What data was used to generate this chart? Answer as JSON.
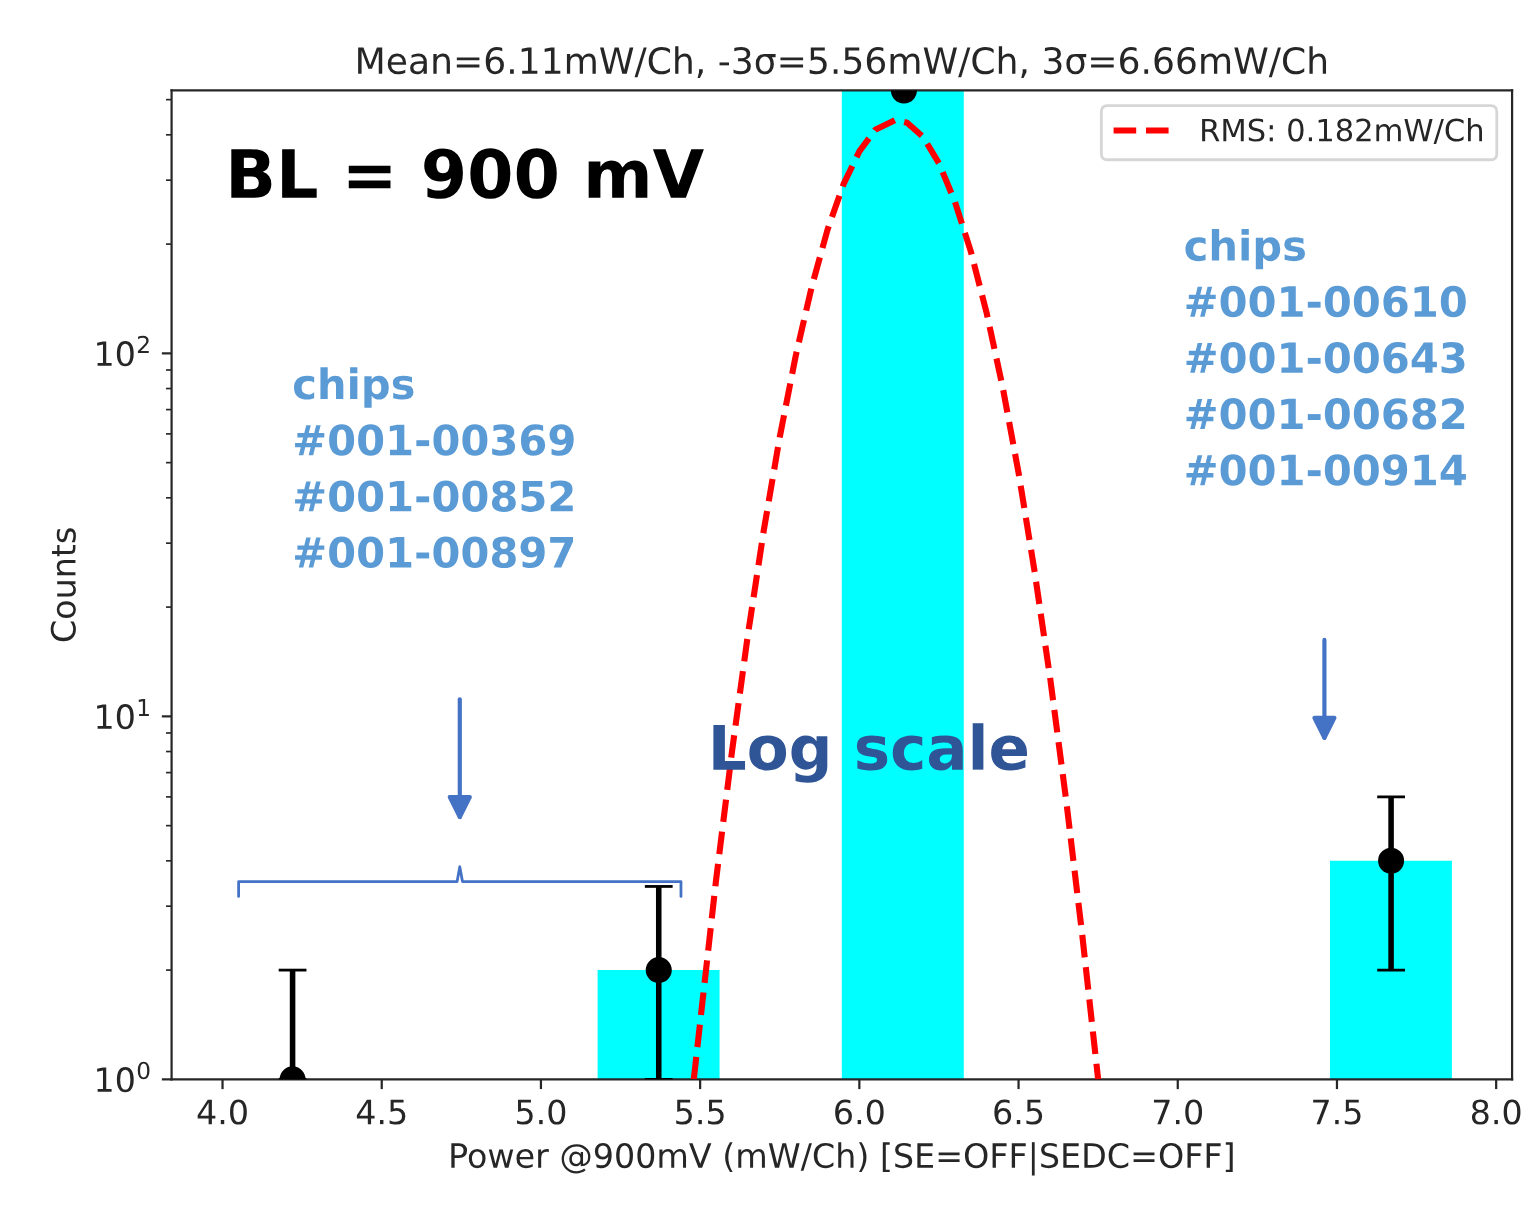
{
  "chart_data": {
    "type": "histogram",
    "title": "Mean=6.11mW/Ch, -3σ=5.56mW/Ch, 3σ=6.66mW/Ch",
    "xlabel": "Power @900mV (mW/Ch) [SE=OFF|SEDC=OFF]",
    "ylabel": "Counts",
    "bins": [
      4.029,
      4.412,
      4.795,
      5.178,
      5.561,
      5.945,
      6.328,
      6.711,
      7.094,
      7.478,
      7.861
    ],
    "values": [
      1,
      null,
      null,
      2,
      null,
      530,
      null,
      null,
      null,
      4
    ],
    "color": "#00ffff",
    "series": [
      {
        "type": "scatter",
        "color": "#000000",
        "marker": "circle",
        "x": [
          4.22,
          5.37,
          6.14,
          7.67
        ],
        "values": [
          1,
          2,
          530,
          4
        ],
        "errors": [
          [
            1,
            2
          ],
          [
            1,
            3.4
          ],
          null,
          [
            2,
            6
          ]
        ]
      },
      {
        "type": "line",
        "name": "RMS: 0.182mW/Ch",
        "color": "#ff0000",
        "line_style": "dashed",
        "x": [
          5.48,
          5.55,
          5.6,
          5.65,
          5.7,
          5.75,
          5.8,
          5.85,
          5.9,
          5.95,
          6.0,
          6.05,
          6.115,
          6.15,
          6.2,
          6.25,
          6.3,
          6.35,
          6.4,
          6.45,
          6.5,
          6.55,
          6.6,
          6.65,
          6.7,
          6.75
        ],
        "values": [
          1.0,
          3.54,
          8.0,
          16.8,
          32.6,
          58.8,
          98.3,
          152,
          219,
          292,
          360,
          413,
          440,
          432,
          395,
          334,
          262,
          191,
          129,
          80.8,
          46.9,
          25.2,
          12.6,
          5.83,
          2.5,
          1.0
        ]
      }
    ],
    "log": "y",
    "xlim": [
      3.84,
      8.05
    ],
    "xticks": [
      {
        "value": 4,
        "label": "4.0"
      },
      4.5,
      {
        "value": 5,
        "label": "5.0"
      },
      5.5,
      {
        "value": 6,
        "label": "6.0"
      },
      6.5,
      {
        "value": 7,
        "label": "7.0"
      },
      7.5,
      {
        "value": 8,
        "label": "8.0"
      }
    ],
    "ylim": [
      1,
      530
    ],
    "yticks": [
      {
        "value": 1,
        "label": "10$^{0}$"
      },
      {
        "value": 10,
        "label": "10$^{1}$"
      },
      {
        "value": 100,
        "label": "10$^{2}$"
      }
    ],
    "legend": "top right",
    "grid": false,
    "annotations": [
      "BL = 900 mV",
      "Log scale",
      "chips\n#001-00369\n#001-00852\n#001-00897",
      "chips\n#001-00610\n#001-00643\n#001-00682\n#001-00914"
    ]
  }
}
